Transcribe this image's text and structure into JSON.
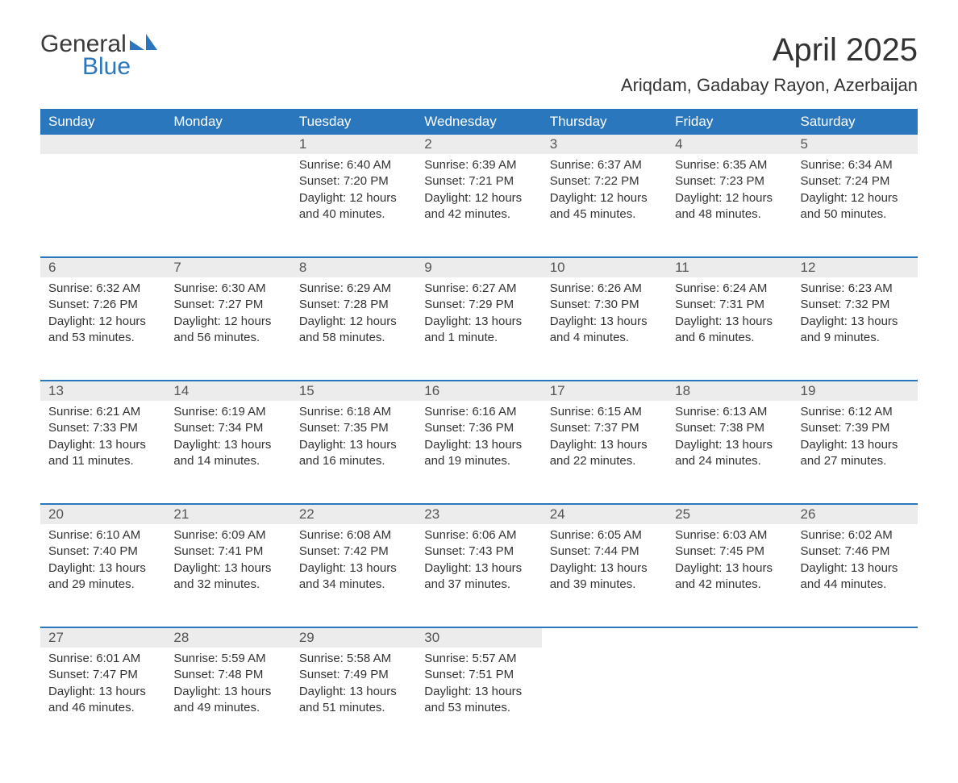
{
  "logo": {
    "text1": "General",
    "text2": "Blue",
    "shape_color": "#2b77bd"
  },
  "title": "April 2025",
  "subtitle": "Ariqdam, Gadabay Rayon, Azerbaijan",
  "colors": {
    "header_bg": "#2b77bd",
    "header_text": "#ffffff",
    "daynum_bg": "#ececec",
    "row_divider": "#2b77bd",
    "text": "#333333",
    "page_bg": "#ffffff"
  },
  "typography": {
    "title_fontsize": 40,
    "subtitle_fontsize": 22,
    "header_fontsize": 17,
    "daynum_fontsize": 17,
    "cell_fontsize": 15,
    "font_family": "Segoe UI"
  },
  "calendar": {
    "columns": [
      "Sunday",
      "Monday",
      "Tuesday",
      "Wednesday",
      "Thursday",
      "Friday",
      "Saturday"
    ],
    "weeks": [
      [
        null,
        null,
        {
          "n": "1",
          "sr": "6:40 AM",
          "ss": "7:20 PM",
          "dl": "12 hours and 40 minutes."
        },
        {
          "n": "2",
          "sr": "6:39 AM",
          "ss": "7:21 PM",
          "dl": "12 hours and 42 minutes."
        },
        {
          "n": "3",
          "sr": "6:37 AM",
          "ss": "7:22 PM",
          "dl": "12 hours and 45 minutes."
        },
        {
          "n": "4",
          "sr": "6:35 AM",
          "ss": "7:23 PM",
          "dl": "12 hours and 48 minutes."
        },
        {
          "n": "5",
          "sr": "6:34 AM",
          "ss": "7:24 PM",
          "dl": "12 hours and 50 minutes."
        }
      ],
      [
        {
          "n": "6",
          "sr": "6:32 AM",
          "ss": "7:26 PM",
          "dl": "12 hours and 53 minutes."
        },
        {
          "n": "7",
          "sr": "6:30 AM",
          "ss": "7:27 PM",
          "dl": "12 hours and 56 minutes."
        },
        {
          "n": "8",
          "sr": "6:29 AM",
          "ss": "7:28 PM",
          "dl": "12 hours and 58 minutes."
        },
        {
          "n": "9",
          "sr": "6:27 AM",
          "ss": "7:29 PM",
          "dl": "13 hours and 1 minute."
        },
        {
          "n": "10",
          "sr": "6:26 AM",
          "ss": "7:30 PM",
          "dl": "13 hours and 4 minutes."
        },
        {
          "n": "11",
          "sr": "6:24 AM",
          "ss": "7:31 PM",
          "dl": "13 hours and 6 minutes."
        },
        {
          "n": "12",
          "sr": "6:23 AM",
          "ss": "7:32 PM",
          "dl": "13 hours and 9 minutes."
        }
      ],
      [
        {
          "n": "13",
          "sr": "6:21 AM",
          "ss": "7:33 PM",
          "dl": "13 hours and 11 minutes."
        },
        {
          "n": "14",
          "sr": "6:19 AM",
          "ss": "7:34 PM",
          "dl": "13 hours and 14 minutes."
        },
        {
          "n": "15",
          "sr": "6:18 AM",
          "ss": "7:35 PM",
          "dl": "13 hours and 16 minutes."
        },
        {
          "n": "16",
          "sr": "6:16 AM",
          "ss": "7:36 PM",
          "dl": "13 hours and 19 minutes."
        },
        {
          "n": "17",
          "sr": "6:15 AM",
          "ss": "7:37 PM",
          "dl": "13 hours and 22 minutes."
        },
        {
          "n": "18",
          "sr": "6:13 AM",
          "ss": "7:38 PM",
          "dl": "13 hours and 24 minutes."
        },
        {
          "n": "19",
          "sr": "6:12 AM",
          "ss": "7:39 PM",
          "dl": "13 hours and 27 minutes."
        }
      ],
      [
        {
          "n": "20",
          "sr": "6:10 AM",
          "ss": "7:40 PM",
          "dl": "13 hours and 29 minutes."
        },
        {
          "n": "21",
          "sr": "6:09 AM",
          "ss": "7:41 PM",
          "dl": "13 hours and 32 minutes."
        },
        {
          "n": "22",
          "sr": "6:08 AM",
          "ss": "7:42 PM",
          "dl": "13 hours and 34 minutes."
        },
        {
          "n": "23",
          "sr": "6:06 AM",
          "ss": "7:43 PM",
          "dl": "13 hours and 37 minutes."
        },
        {
          "n": "24",
          "sr": "6:05 AM",
          "ss": "7:44 PM",
          "dl": "13 hours and 39 minutes."
        },
        {
          "n": "25",
          "sr": "6:03 AM",
          "ss": "7:45 PM",
          "dl": "13 hours and 42 minutes."
        },
        {
          "n": "26",
          "sr": "6:02 AM",
          "ss": "7:46 PM",
          "dl": "13 hours and 44 minutes."
        }
      ],
      [
        {
          "n": "27",
          "sr": "6:01 AM",
          "ss": "7:47 PM",
          "dl": "13 hours and 46 minutes."
        },
        {
          "n": "28",
          "sr": "5:59 AM",
          "ss": "7:48 PM",
          "dl": "13 hours and 49 minutes."
        },
        {
          "n": "29",
          "sr": "5:58 AM",
          "ss": "7:49 PM",
          "dl": "13 hours and 51 minutes."
        },
        {
          "n": "30",
          "sr": "5:57 AM",
          "ss": "7:51 PM",
          "dl": "13 hours and 53 minutes."
        },
        null,
        null,
        null
      ]
    ],
    "labels": {
      "sunrise": "Sunrise:",
      "sunset": "Sunset:",
      "daylight": "Daylight:"
    }
  }
}
